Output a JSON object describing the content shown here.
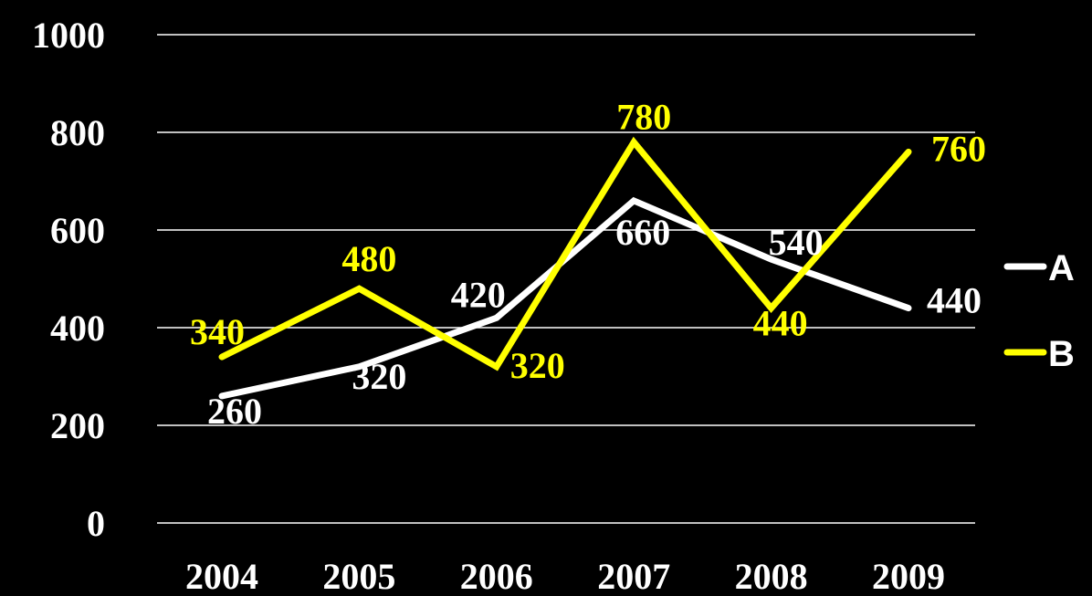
{
  "chart_data": {
    "type": "line",
    "categories": [
      "2004",
      "2005",
      "2006",
      "2007",
      "2008",
      "2009"
    ],
    "series": [
      {
        "name": "A",
        "values": [
          260,
          320,
          420,
          660,
          540,
          440
        ],
        "color": "#ffffff"
      },
      {
        "name": "B",
        "values": [
          340,
          480,
          320,
          780,
          440,
          760
        ],
        "color": "#ffff00"
      }
    ],
    "ylim": [
      0,
      1000
    ],
    "yticks": [
      "0",
      "200",
      "400",
      "600",
      "800",
      "1000"
    ],
    "title": "",
    "xlabel": "",
    "ylabel": "",
    "grid": true,
    "legend_position": "right",
    "background": "#000000",
    "grid_color": "#ffffff",
    "tick_color": "#ffffff"
  }
}
